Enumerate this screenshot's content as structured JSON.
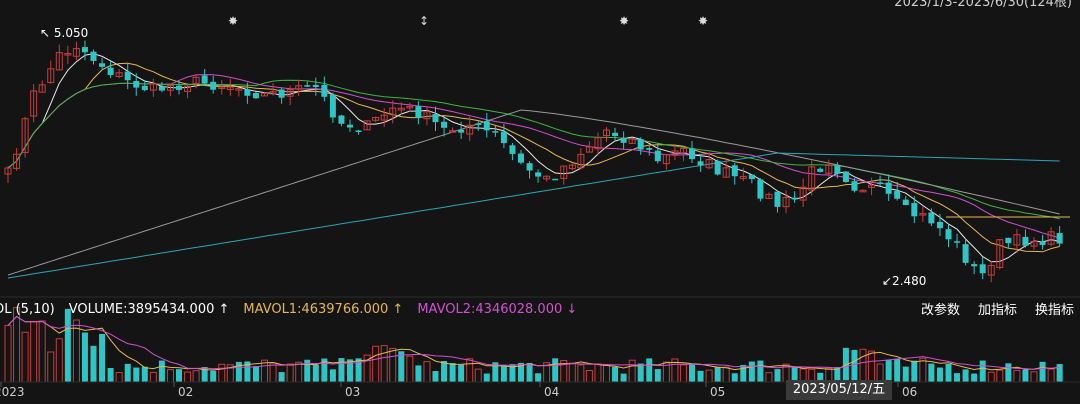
{
  "header": {
    "date_range": "2023/1/3-2023/6/30(124根)"
  },
  "volume_legend": {
    "indicator": "OL (5,10)",
    "volume": "VOLUME:3895434.000 ↑",
    "mavol1": "MAVOL1:4639766.000 ↑",
    "mavol2": "MAVOL2:4346028.000 ↓"
  },
  "toolbar": {
    "params": "改参数",
    "add_indicator": "加指标",
    "switch_indicator": "换指标"
  },
  "crosshair_date": "2023/05/12/五",
  "colors": {
    "background": "#141414",
    "up": "#c83c3c",
    "down": "#2cc6c6",
    "ma5": "#e8e8e8",
    "ma10": "#e8b84a",
    "ma20": "#d24fd2",
    "ma30": "#3fb53f",
    "ma60": "#9a9a9a",
    "ma120": "#2aa6b8"
  },
  "chart_data": {
    "type": "candlestick",
    "period": "2023/1/3-2023/6/30",
    "bars": 124,
    "x_ticks": [
      "2023",
      "02",
      "03",
      "04",
      "05",
      "06"
    ],
    "price_high_label": "5.050",
    "price_low_label": "2.480",
    "event_markers": [
      "sun",
      "flag",
      "sun",
      "sun"
    ],
    "volume_series": [
      {
        "name": "VOLUME",
        "last": 3895434.0
      },
      {
        "name": "MAVOL1",
        "last": 4639766.0
      },
      {
        "name": "MAVOL2",
        "last": 4346028.0
      }
    ]
  }
}
